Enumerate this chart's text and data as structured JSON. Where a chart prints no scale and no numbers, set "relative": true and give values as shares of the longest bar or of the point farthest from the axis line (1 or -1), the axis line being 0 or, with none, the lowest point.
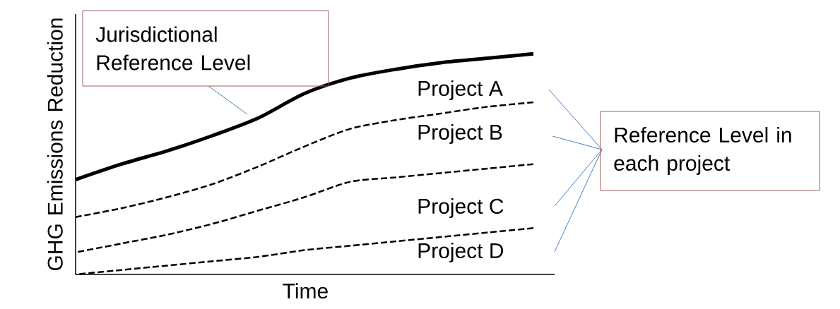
{
  "chart_data": {
    "type": "line",
    "relative": true,
    "xlabel": "Time",
    "ylabel": "GHG Emissions Reduction",
    "marker": "none",
    "categories": [
      null,
      null,
      null,
      null,
      null,
      null,
      null,
      null,
      null,
      null,
      null
    ],
    "series": [
      {
        "color": "#000000",
        "line_style": "solid",
        "values": [
          0.43,
          0.5,
          0.56,
          0.63,
          0.71,
          0.82,
          0.89,
          0.93,
          0.96,
          0.98,
          1.0
        ]
      },
      {
        "color": "#000000",
        "line_style": "dashed",
        "values": [
          0.26,
          0.3,
          0.35,
          0.41,
          0.49,
          0.58,
          0.66,
          0.7,
          0.73,
          0.76,
          0.78
        ]
      },
      {
        "color": "#000000",
        "line_style": "dashed",
        "values": [
          0.1,
          0.14,
          0.18,
          0.23,
          0.29,
          0.35,
          0.42,
          0.44,
          0.46,
          0.48,
          0.5
        ]
      },
      {
        "color": "#000000",
        "line_style": "dashed",
        "values": [
          0.0,
          0.02,
          0.04,
          0.06,
          0.08,
          0.11,
          0.13,
          0.15,
          0.17,
          0.19,
          0.21
        ]
      }
    ],
    "annotations": [
      "Jurisdictional Reference Level",
      "Project A",
      "Project B",
      "Project C",
      "Project D",
      "Reference Level in each project"
    ]
  }
}
